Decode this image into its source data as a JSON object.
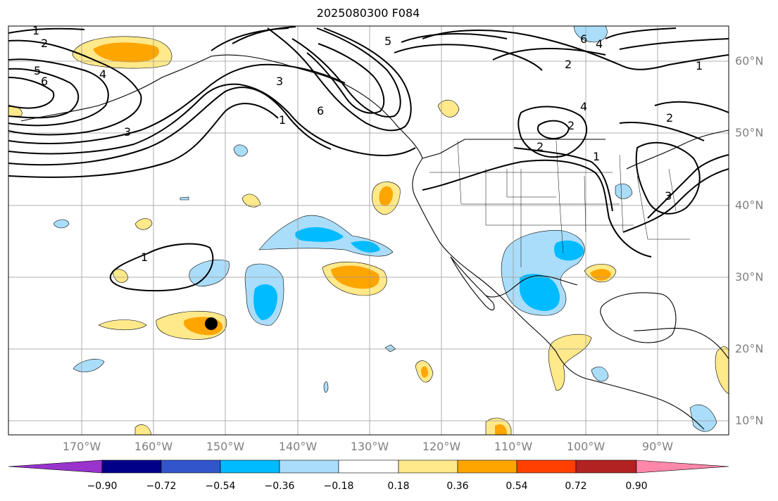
{
  "title": "2025080300 F084",
  "lat_labels": [
    "60°N",
    "50°N",
    "40°N",
    "30°N",
    "20°N",
    "10°N"
  ],
  "lon_labels": [
    "170°W",
    "160°W",
    "150°W",
    "140°W",
    "130°W",
    "120°W",
    "110°W",
    "100°W",
    "90°W"
  ],
  "colorbar": {
    "ticks": [
      "−0.90",
      "−0.72",
      "−0.54",
      "−0.36",
      "−0.18",
      "0.18",
      "0.36",
      "0.54",
      "0.72",
      "0.90"
    ],
    "colors": [
      "#9933cc",
      "#000088",
      "#3355cc",
      "#00bbff",
      "#aaddfa",
      "#ffffff",
      "#ffe98a",
      "#ffa500",
      "#ff4000",
      "#b22222",
      "#ff88aa"
    ]
  },
  "contour_labels": [
    "1",
    "2",
    "5",
    "6",
    "4",
    "3",
    "1",
    "3",
    "6",
    "5",
    "6",
    "4",
    "2",
    "1",
    "2",
    "2",
    "4",
    "2",
    "1",
    "3",
    "1"
  ],
  "marker": "storm-center"
}
